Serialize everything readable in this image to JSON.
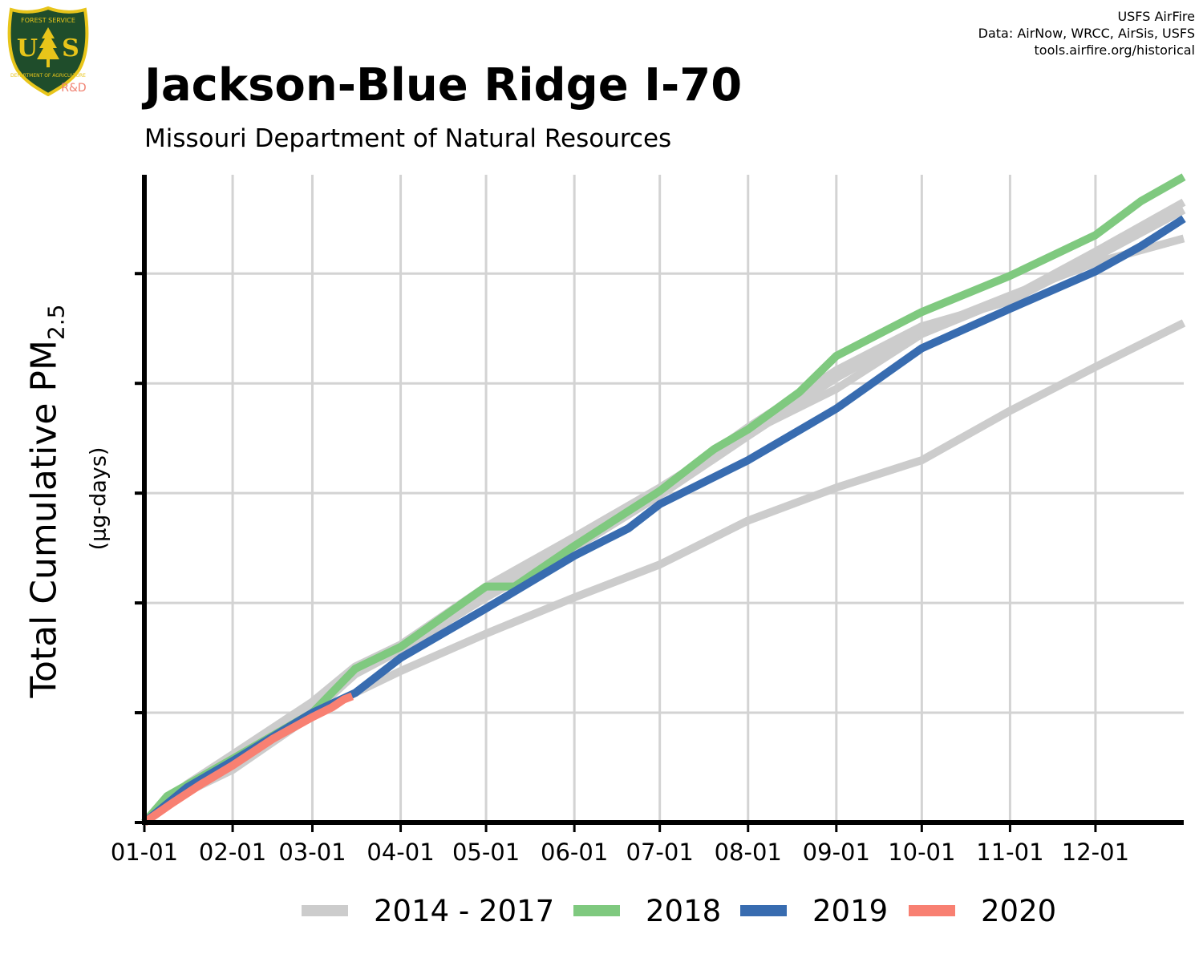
{
  "header": {
    "title": "Jackson-Blue Ridge I-70",
    "subtitle": "Missouri Department of Natural Resources",
    "credits": [
      "USFS AirFire",
      "Data: AirNow, WRCC, AirSis, USFS",
      "tools.airfire.org/historical"
    ]
  },
  "logo": {
    "top_text": "FOREST SERVICE",
    "letters_left": "U",
    "letters_right": "S",
    "bottom_text": "DEPARTMENT OF AGRICULTURE",
    "badge": "R&D",
    "colors": {
      "shield": "#1f4d2b",
      "rim": "#e8c51a",
      "badge": "#f08070"
    }
  },
  "y_axis": {
    "label_main": "Total Cumulative PM",
    "label_sub": "2.5",
    "units": "(µg-days)"
  },
  "colors": {
    "2014 - 2017": "#cccccc",
    "2018": "#7fc97f",
    "2019": "#386cb0",
    "2020": "#f88072",
    "grid": "#d3d3d3",
    "axis": "#000000"
  },
  "chart_data": {
    "type": "line",
    "title": "Jackson-Blue Ridge I-70",
    "subtitle": "Missouri Department of Natural Resources",
    "xlabel": "",
    "ylabel": "Total Cumulative PM2.5 (µg-days)",
    "x_ticks": [
      "01-01",
      "02-01",
      "03-01",
      "04-01",
      "05-01",
      "06-01",
      "07-01",
      "08-01",
      "09-01",
      "10-01",
      "11-01",
      "12-01"
    ],
    "x_tick_days": [
      0,
      31,
      59,
      90,
      120,
      151,
      181,
      212,
      243,
      273,
      304,
      334
    ],
    "xlim": [
      0,
      365
    ],
    "ylim": [
      0,
      590
    ],
    "y_gridlines": [
      0,
      100,
      200,
      300,
      400,
      500
    ],
    "y_tick_labels_shown": false,
    "grid": true,
    "legend_position": "bottom",
    "series": [
      {
        "name": "2014 - 2017",
        "color": "#cccccc",
        "x": [
          0,
          15,
          31,
          59,
          74,
          90,
          120,
          151,
          181,
          212,
          243,
          273,
          304,
          334,
          365
        ],
        "y": [
          0,
          28,
          48,
          98,
          118,
          138,
          172,
          205,
          235,
          275,
          305,
          330,
          375,
          415,
          455
        ]
      },
      {
        "name": "2014 - 2017",
        "color": "#cccccc",
        "x": [
          0,
          15,
          31,
          59,
          74,
          90,
          120,
          151,
          181,
          212,
          243,
          273,
          304,
          334,
          365
        ],
        "y": [
          0,
          35,
          62,
          110,
          142,
          162,
          215,
          260,
          305,
          355,
          395,
          445,
          478,
          520,
          565
        ]
      },
      {
        "name": "2014 - 2017",
        "color": "#cccccc",
        "x": [
          0,
          15,
          31,
          59,
          74,
          90,
          120,
          151,
          181,
          212,
          243,
          273,
          304,
          334,
          365
        ],
        "y": [
          0,
          30,
          58,
          106,
          138,
          158,
          210,
          255,
          303,
          360,
          412,
          452,
          475,
          515,
          558
        ]
      },
      {
        "name": "2014 - 2017",
        "color": "#cccccc",
        "x": [
          0,
          15,
          31,
          59,
          74,
          90,
          120,
          151,
          181,
          212,
          243,
          273,
          304,
          334,
          365
        ],
        "y": [
          0,
          28,
          52,
          100,
          135,
          157,
          205,
          250,
          298,
          352,
          405,
          448,
          480,
          510,
          532
        ]
      },
      {
        "name": "2018",
        "color": "#7fc97f",
        "x": [
          0,
          8,
          31,
          59,
          74,
          90,
          120,
          130,
          151,
          181,
          200,
          212,
          230,
          243,
          273,
          304,
          334,
          350,
          365
        ],
        "y": [
          0,
          24,
          58,
          100,
          140,
          160,
          215,
          215,
          252,
          302,
          340,
          358,
          392,
          425,
          465,
          498,
          535,
          566,
          588
        ]
      },
      {
        "name": "2019",
        "color": "#386cb0",
        "x": [
          0,
          15,
          31,
          59,
          74,
          90,
          120,
          151,
          170,
          181,
          212,
          243,
          273,
          304,
          334,
          350,
          365
        ],
        "y": [
          0,
          32,
          56,
          100,
          118,
          150,
          195,
          243,
          268,
          290,
          330,
          377,
          432,
          468,
          502,
          525,
          550
        ]
      },
      {
        "name": "2020",
        "color": "#f88072",
        "x": [
          0,
          10,
          20,
          31,
          45,
          59,
          66,
          70,
          73
        ],
        "y": [
          0,
          18,
          35,
          52,
          76,
          96,
          105,
          112,
          115
        ]
      }
    ]
  },
  "legend": {
    "items": [
      {
        "label": "2014 - 2017",
        "color": "#cccccc"
      },
      {
        "label": "2018",
        "color": "#7fc97f"
      },
      {
        "label": "2019",
        "color": "#386cb0"
      },
      {
        "label": "2020",
        "color": "#f88072"
      }
    ]
  }
}
